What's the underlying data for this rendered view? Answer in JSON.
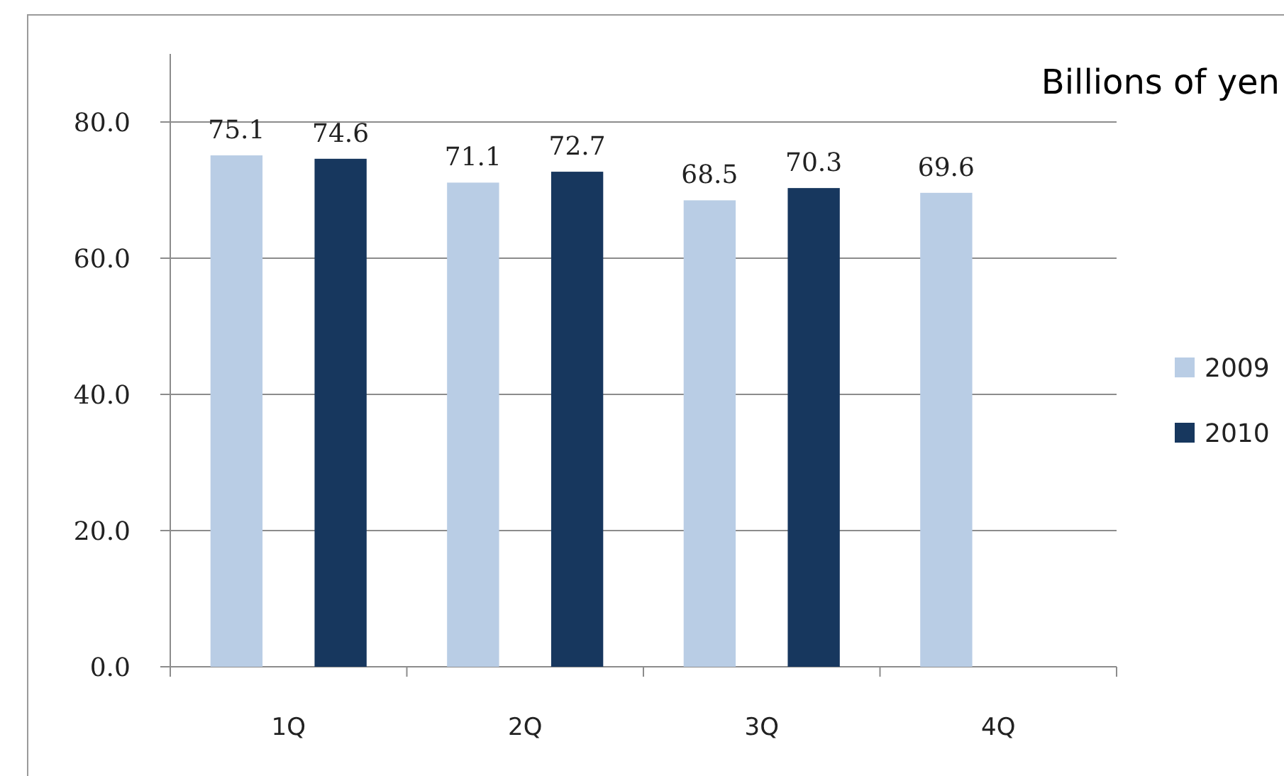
{
  "chart_data": {
    "type": "bar",
    "ylabel": "Billions of yen",
    "categories": [
      "1Q",
      "2Q",
      "3Q",
      "4Q"
    ],
    "series": [
      {
        "name": "2009",
        "color": "#b9cde5",
        "values": [
          75.1,
          71.1,
          68.5,
          69.6
        ]
      },
      {
        "name": "2010",
        "color": "#17375e",
        "values": [
          74.6,
          72.7,
          70.3,
          null
        ]
      }
    ],
    "ylim": [
      0,
      90
    ],
    "yticks": [
      {
        "value": 0,
        "label": "0.0"
      },
      {
        "value": 20,
        "label": "20.0"
      },
      {
        "value": 40,
        "label": "40.0"
      },
      {
        "value": 60,
        "label": "60.0"
      },
      {
        "value": 80,
        "label": "80.0"
      }
    ],
    "grid": "y",
    "legend": "right",
    "data_labels": true
  }
}
